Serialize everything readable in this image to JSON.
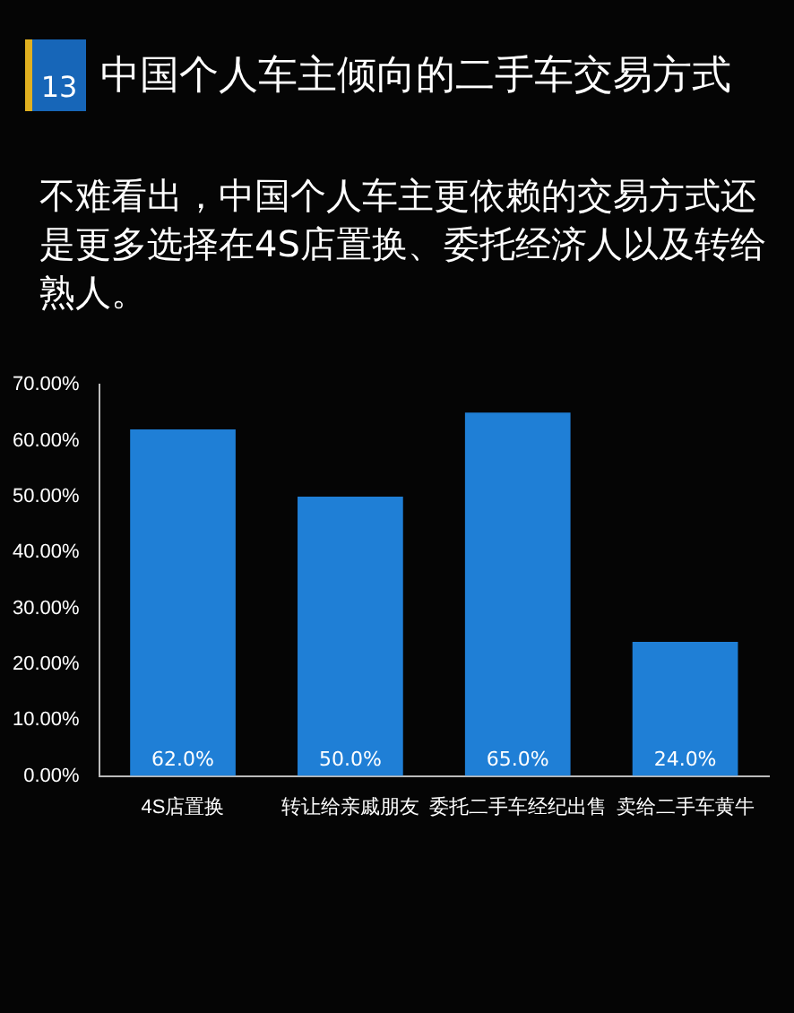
{
  "chart_data": {
    "type": "bar",
    "title": "中国个人车主倾向的二手车交易方式",
    "subtitle": "不难看出，中国个人车主更依赖的交易方式还是更多选择在4S店置换、委托经济人以及转给熟人。",
    "annotations": [
      "13"
    ],
    "categories": [
      "4S店置换",
      "转让给亲戚朋友",
      "委托二手车经纪出售",
      "卖给二手车黄牛"
    ],
    "values": [
      62,
      50,
      65,
      24
    ],
    "value_labels": [
      "62.0%",
      "50.0%",
      "65.0%",
      "24.0%"
    ],
    "color": "#1f7fd6",
    "ylim": [
      0,
      70
    ],
    "yticks": [
      {
        "value": 0,
        "label": "0.00%"
      },
      {
        "value": 10,
        "label": "10.00%"
      },
      {
        "value": 20,
        "label": "20.00%"
      },
      {
        "value": 30,
        "label": "30.00%"
      },
      {
        "value": 40,
        "label": "40.00%"
      },
      {
        "value": 50,
        "label": "50.00%"
      },
      {
        "value": 60,
        "label": "60.00%"
      },
      {
        "value": 70,
        "label": "70.00%"
      }
    ],
    "grid": false,
    "legend": false
  }
}
